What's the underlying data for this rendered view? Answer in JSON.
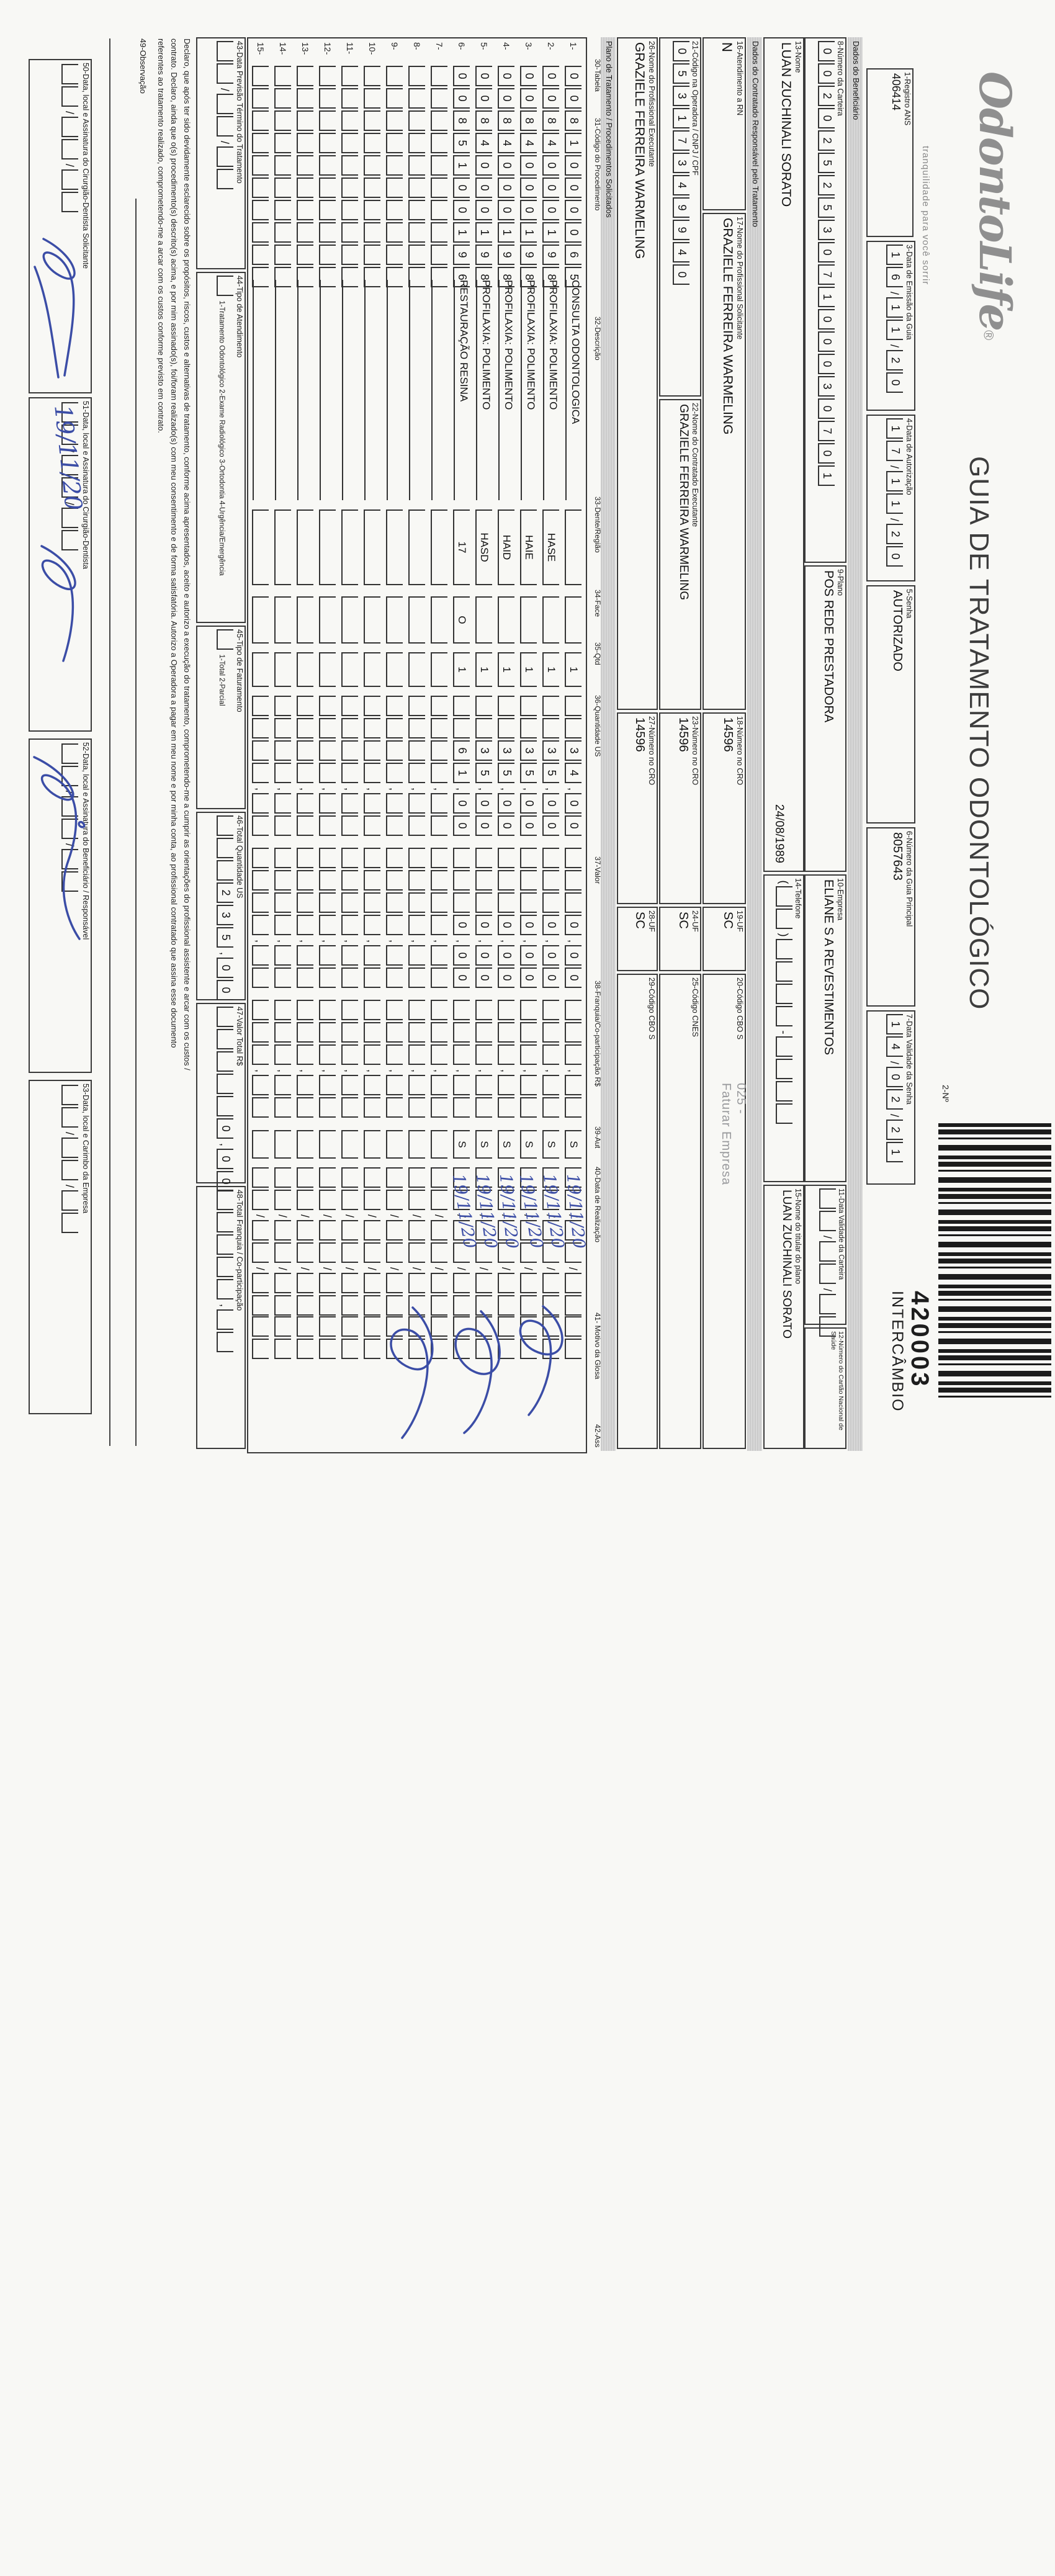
{
  "meta": {
    "title": "GUIA DE TRATAMENTO ODONTOLÓGICO",
    "form_number_label": "2-Nº",
    "barcode_number": "420003",
    "barcode_sub": "INTERCÂMBIO"
  },
  "logo": {
    "name": "OdontoLife",
    "reg": "®",
    "tagline": "tranquilidade para você sorrir"
  },
  "header_fields": {
    "registro_ans": {
      "label": "1-Registro ANS",
      "value": "406414"
    },
    "data_emissao": {
      "label": "3-Data de Emissão da Guia",
      "value": "16/11/20"
    },
    "data_autorizacao": {
      "label": "4-Data de Autorização",
      "value": "17/11/20"
    },
    "senha": {
      "label": "5-Senha",
      "value": "AUTORIZADO"
    },
    "numero_guia_principal": {
      "label": "6-Número da Guia Principal",
      "value": "8057643"
    },
    "data_validade_senha": {
      "label": "7-Data Validade da Senha",
      "value": "14/02/21"
    }
  },
  "sections": {
    "beneficiario": "Dados do Beneficiário",
    "contratado": "Dados do Contratado Responsável pelo Tratamento",
    "plano_tratamento": "Plano de Tratamento / Procedimentos Solicitados"
  },
  "beneficiario": {
    "numero_carteira": {
      "label": "8-Número da Carteira",
      "value": "00202525307100030701"
    },
    "plano": {
      "label": "9-Plano",
      "value": "POS REDE PRESTADORA"
    },
    "empresa": {
      "label": "10-Empresa",
      "value": "ELIANE S A REVESTIMENTOS"
    },
    "validade_carteira": {
      "label": "11-Data Validade da Carteira",
      "value": "  /  /  "
    },
    "cartao_saude": {
      "label": "12-Número do Cartão Nacional de Saúde",
      "value": ""
    },
    "nome": {
      "label": "13-Nome",
      "value": "LUAN ZUCHINALI SORATO",
      "nascimento": "24/08/1989"
    },
    "telefone": {
      "label": "14-Telefone",
      "value": "(  )    -    "
    },
    "titular": {
      "label": "15-Nome do titular do plano",
      "value": "LUAN ZUCHINALI SORATO"
    }
  },
  "contratado": {
    "atendimento_rn": {
      "label": "16-Atendimento a RN",
      "value": "N"
    },
    "prof_solicitante": {
      "label": "17-Nome do Profissional Solicitante",
      "value": "GRAZIELE FERREIRA WARMELING"
    },
    "cro_solicitante": {
      "label": "18-Número no CRO",
      "value": "14596"
    },
    "uf_solicitante": {
      "label": "19-UF",
      "value": "SC"
    },
    "cbo_solicitante": {
      "label": "20-Código CBO S",
      "value": ""
    },
    "overlay_code": "025 -",
    "overlay_text": "Faturar Empresa",
    "codigo_operadora": {
      "label": "21-Código na Operadora / CNPJ / CPF",
      "value": "05317349940"
    },
    "contratado_executante": {
      "label": "22-Nome do Contratado Executante",
      "value": "GRAZIELE FERREIRA WARMELING"
    },
    "cro_executante": {
      "label": "23-Número no CRO",
      "value": "14596"
    },
    "uf_executante": {
      "label": "24-UF",
      "value": "SC"
    },
    "cnes": {
      "label": "25-Código CNES",
      "value": ""
    },
    "prof_executante": {
      "label": "26-Nome do Profissional Executante",
      "value": "GRAZIELE FERREIRA WARMELING"
    },
    "cro_prof_executante": {
      "label": "27-Número no CRO",
      "value": "14596"
    },
    "uf_prof_executante": {
      "label": "28-UF",
      "value": "SC"
    },
    "cbo_executante": {
      "label": "29-Código CBO S",
      "value": ""
    }
  },
  "table": {
    "headers": [
      "30-Tabela",
      "31-Código do Procedimento",
      "32-Descrição",
      "33-Dente/Região",
      "34-Face",
      "35-Qtd",
      "36-Quantidade US",
      "37-Valor",
      "38-Franquia/Co-participação R$",
      "39-Aut",
      "40-Data de Realização",
      "41- Motivo da Glosa",
      "42-Ass"
    ],
    "rows": [
      {
        "n": "1-",
        "codigo": "0081000065",
        "descricao": "CONSULTA ODONTOLOGICA",
        "dente": "",
        "face": "",
        "qtd": "1",
        "us": "  34,00",
        "valor": "   0,00",
        "franquia": "   ,  ",
        "aut": "S",
        "data": "  /  /  ",
        "motivo": "  ",
        "data_hand": "19/11/20"
      },
      {
        "n": "2-",
        "codigo": "0084000198",
        "descricao": "PROFILAXIA: POLIMENTO",
        "dente": "HASE",
        "face": "",
        "qtd": "1",
        "us": "  35,00",
        "valor": "   0,00",
        "franquia": "   ,  ",
        "aut": "S",
        "data": "  /  /  ",
        "motivo": "  ",
        "data_hand": "19/11/20"
      },
      {
        "n": "3-",
        "codigo": "0084000198",
        "descricao": "PROFILAXIA: POLIMENTO",
        "dente": "HAIE",
        "face": "",
        "qtd": "1",
        "us": "  35,00",
        "valor": "   0,00",
        "franquia": "   ,  ",
        "aut": "S",
        "data": "  /  /  ",
        "motivo": "  ",
        "data_hand": "19/11/20"
      },
      {
        "n": "4-",
        "codigo": "0084000198",
        "descricao": "PROFILAXIA: POLIMENTO",
        "dente": "HAID",
        "face": "",
        "qtd": "1",
        "us": "  35,00",
        "valor": "   0,00",
        "franquia": "   ,  ",
        "aut": "S",
        "data": "  /  /  ",
        "motivo": "  ",
        "data_hand": "19/11/20"
      },
      {
        "n": "5-",
        "codigo": "0084000198",
        "descricao": "PROFILAXIA: POLIMENTO",
        "dente": "HASD",
        "face": "",
        "qtd": "1",
        "us": "  35,00",
        "valor": "   0,00",
        "franquia": "   ,  ",
        "aut": "S",
        "data": "  /  /  ",
        "motivo": "  ",
        "data_hand": "19/11/20"
      },
      {
        "n": "6-",
        "codigo": "0085100196",
        "descricao": "RESTAURAÇÃO RESINA",
        "dente": "17",
        "face": "O",
        "qtd": "1",
        "us": "  61,00",
        "valor": "   0,00",
        "franquia": "   ,  ",
        "aut": "S",
        "data": "  /  /  ",
        "motivo": "  ",
        "data_hand": "19/11/20"
      },
      {
        "n": "7-",
        "codigo": "          ",
        "descricao": "",
        "dente": "",
        "face": "",
        "qtd": "",
        "us": "    ,  ",
        "valor": "    ,  ",
        "franquia": "   ,  ",
        "aut": "",
        "data": "  /  /  ",
        "motivo": "  ",
        "data_hand": ""
      },
      {
        "n": "8-",
        "codigo": "          ",
        "descricao": "",
        "dente": "",
        "face": "",
        "qtd": "",
        "us": "    ,  ",
        "valor": "    ,  ",
        "franquia": "   ,  ",
        "aut": "",
        "data": "  /  /  ",
        "motivo": "  ",
        "data_hand": ""
      },
      {
        "n": "9-",
        "codigo": "          ",
        "descricao": "",
        "dente": "",
        "face": "",
        "qtd": "",
        "us": "    ,  ",
        "valor": "    ,  ",
        "franquia": "   ,  ",
        "aut": "",
        "data": "  /  /  ",
        "motivo": "  ",
        "data_hand": ""
      },
      {
        "n": "10-",
        "codigo": "          ",
        "descricao": "",
        "dente": "",
        "face": "",
        "qtd": "",
        "us": "    ,  ",
        "valor": "    ,  ",
        "franquia": "   ,  ",
        "aut": "",
        "data": "  /  /  ",
        "motivo": "  ",
        "data_hand": ""
      },
      {
        "n": "11-",
        "codigo": "          ",
        "descricao": "",
        "dente": "",
        "face": "",
        "qtd": "",
        "us": "    ,  ",
        "valor": "    ,  ",
        "franquia": "   ,  ",
        "aut": "",
        "data": "  /  /  ",
        "motivo": "  ",
        "data_hand": ""
      },
      {
        "n": "12-",
        "codigo": "          ",
        "descricao": "",
        "dente": "",
        "face": "",
        "qtd": "",
        "us": "    ,  ",
        "valor": "    ,  ",
        "franquia": "   ,  ",
        "aut": "",
        "data": "  /  /  ",
        "motivo": "  ",
        "data_hand": ""
      },
      {
        "n": "13-",
        "codigo": "          ",
        "descricao": "",
        "dente": "",
        "face": "",
        "qtd": "",
        "us": "    ,  ",
        "valor": "    ,  ",
        "franquia": "   ,  ",
        "aut": "",
        "data": "  /  /  ",
        "motivo": "  ",
        "data_hand": ""
      },
      {
        "n": "14-",
        "codigo": "          ",
        "descricao": "",
        "dente": "",
        "face": "",
        "qtd": "",
        "us": "    ,  ",
        "valor": "    ,  ",
        "franquia": "   ,  ",
        "aut": "",
        "data": "  /  /  ",
        "motivo": "  ",
        "data_hand": ""
      },
      {
        "n": "15-",
        "codigo": "          ",
        "descricao": "",
        "dente": "",
        "face": "",
        "qtd": "",
        "us": "    ,  ",
        "valor": "    ,  ",
        "franquia": "   ,  ",
        "aut": "",
        "data": "  /  /  ",
        "motivo": "  ",
        "data_hand": ""
      }
    ]
  },
  "totals_row": {
    "previsao": {
      "label": "43-Data Previsão Término do Tratamento",
      "value": "  /  /  "
    },
    "tipo_atendimento": {
      "label": "44-Tipo de Atendimento",
      "value": " ",
      "options": "1-Tratamento Odontológico  2-Exame Radiológico  3-Ortodontia  4-Urgência/Emergência"
    },
    "tipo_faturamento": {
      "label": "45-Tipo de Faturamento",
      "value": " ",
      "options": "1-Total  2-Parcial"
    },
    "total_us": {
      "label": "46-Total Quantidade US",
      "value": "   235,00"
    },
    "valor_total": {
      "label": "47-Valor Total R$",
      "value": "     0,00"
    },
    "total_franquia": {
      "label": "48-Total Franquia / Co-participação",
      "value": "     ,  "
    }
  },
  "declaration": [
    "Declaro, que após ter sido devidamente esclarecido sobre os propósitos, riscos, custos e alternativas de tratamento, conforme acima apresentados, aceito e autorizo a execução do tratamento, comprometendo-me a cumprir as orientações do profissional assistente e arcar com os custos /",
    "contrato. Declaro, ainda que o(s) procedimento(s) descrito(s) acima, e por mim assinado(s), foi/foram realizado(s) com meu consentimento e de forma satisfatória. Autorizo a Operadora a pagar em meu nome e por minha conta, ao profissional contratado que assina esse documento",
    "referentes ao tratamento realizado, comprometendo-me a arcar com os custos conforme previsto em contrato."
  ],
  "observacao_label": "49-Observação",
  "signatures": [
    {
      "label": "50-Data, local e Assinatura do Cirurgião-Dentista Solicitante",
      "date": "  /  /  ",
      "handwriting": ""
    },
    {
      "label": "51-Data, local e Assinatura do Cirurgião-Dentista",
      "date": "  /  /  ",
      "handwriting": "19/11/20"
    },
    {
      "label": "52-Data, local e Assinatura do Beneficiário / Responsável",
      "date": "  /  /  ",
      "handwriting": ""
    },
    {
      "label": "53-Data, local e Carimbo da Empresa",
      "date": "  /  /  ",
      "handwriting": ""
    }
  ],
  "handwriting_color": "#3b4da6"
}
